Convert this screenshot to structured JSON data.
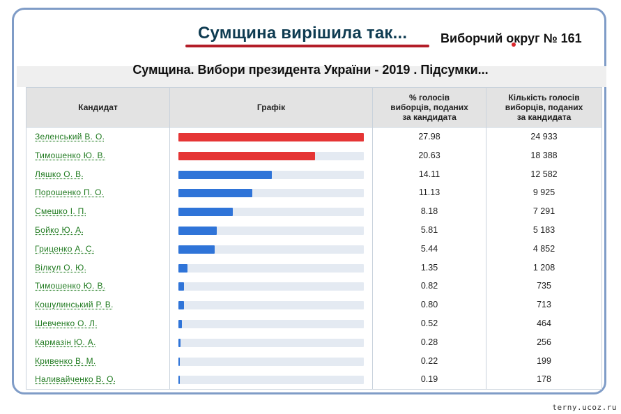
{
  "headline": "Сумщина вирішила так...",
  "district": "Виборчий округ № 161",
  "subtitle": "Сумщина. Вибори президента України - 2019 . Підсумки...",
  "watermark": "terny.ucoz.ru",
  "colors": {
    "top2_bar": "#e53535",
    "other_bar": "#2f74d8",
    "bar_track": "#e4eaf2",
    "name_link": "#1f7a1f",
    "headline": "#0e3b51",
    "underline": "#b31d28",
    "frame": "#7f9cc7"
  },
  "table": {
    "headers": {
      "candidate": "Кандидат",
      "graph": "Графік",
      "percent": "% голосів\nвиборців, поданих\nза кандидата",
      "votes": "Кількість голосів\nвиборців, поданих\nза кандидата"
    }
  },
  "chart_data": {
    "type": "bar",
    "title": "Сумщина. Вибори президента України - 2019 . Підсумки...",
    "categories": [
      "Зеленський В. О.",
      "Тимошенко Ю. В.",
      "Ляшко О. В.",
      "Порошенко П. О.",
      "Смешко І. П.",
      "Бойко Ю. А.",
      "Гриценко А. С.",
      "Вілкул О. Ю.",
      "Тимошенко Ю. В.",
      "Кошулинський Р. В.",
      "Шевченко О. Л.",
      "Кармазін Ю. А.",
      "Кривенко В. М.",
      "Наливайченко В. О."
    ],
    "series": [
      {
        "values": [
          27.98,
          20.63,
          14.11,
          11.13,
          8.18,
          5.81,
          5.44,
          1.35,
          0.82,
          0.8,
          0.52,
          0.28,
          0.22,
          0.19
        ]
      }
    ],
    "votes": [
      24933,
      18388,
      12582,
      9925,
      7291,
      5183,
      4852,
      1208,
      735,
      713,
      464,
      256,
      199,
      178
    ],
    "percent_labels": [
      "27.98",
      "20.63",
      "14.11",
      "11.13",
      "8.18",
      "5.81",
      "5.44",
      "1.35",
      "0.82",
      "0.80",
      "0.52",
      "0.28",
      "0.22",
      "0.19"
    ],
    "vote_labels": [
      "24 933",
      "18 388",
      "12 582",
      "9 925",
      "7 291",
      "5 183",
      "4 852",
      "1 208",
      "735",
      "713",
      "464",
      "256",
      "199",
      "178"
    ],
    "highlight_count": 2,
    "xlim": [
      0,
      27.98
    ],
    "grid": false,
    "legend": "none"
  }
}
